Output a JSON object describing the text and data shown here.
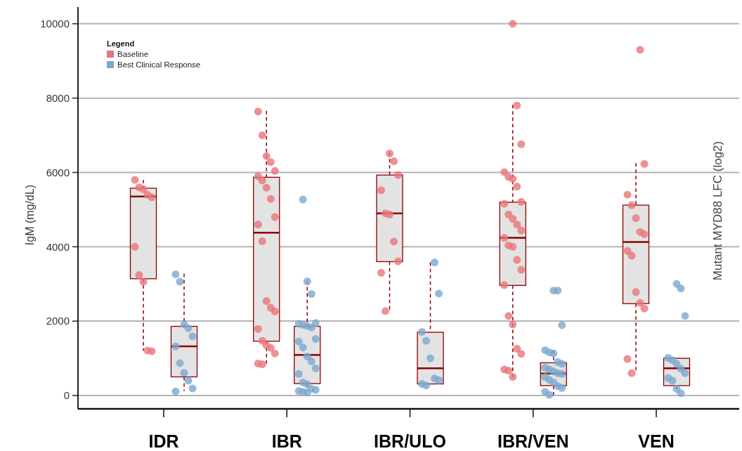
{
  "chart_data": {
    "type": "box",
    "ylabel": "IgM (mg/dL)",
    "y2label": "Mutant MYD88 LFC (log2)",
    "legend_title": "Legend",
    "legend": "top left",
    "grid": "y",
    "ylim": [
      -360,
      10450
    ],
    "yticks": [
      0,
      2000,
      4000,
      6000,
      8000,
      10000
    ],
    "categories": [
      "IDR",
      "IBR",
      "IBR/ULO",
      "IBR/VEN",
      "VEN"
    ],
    "series": [
      {
        "type": "box",
        "color": "#8b0000",
        "boxes": [
          {
            "low": 1200,
            "q1": 3140,
            "median": 5350,
            "q3": 5576,
            "high": 5800
          },
          {
            "low": 860,
            "q1": 1460,
            "median": 4380,
            "q3": 5870,
            "high": 7660
          },
          {
            "low": 2280,
            "q1": 3600,
            "median": 4900,
            "q3": 5930,
            "high": 6540
          },
          {
            "low": 500,
            "q1": 2960,
            "median": 4240,
            "q3": 5200,
            "high": 7820
          },
          {
            "low": 600,
            "q1": 2470,
            "median": 4130,
            "q3": 5120,
            "high": 6250
          }
        ]
      },
      {
        "type": "box",
        "color": "#8b0000",
        "boxes": [
          {
            "low": 120,
            "q1": 500,
            "median": 1320,
            "q3": 1860,
            "high": 3280
          },
          {
            "low": 120,
            "q1": 320,
            "median": 1090,
            "q3": 1860,
            "high": 3090
          },
          {
            "low": 310,
            "q1": 310,
            "median": 730,
            "q3": 1700,
            "high": 3580
          },
          {
            "low": 10,
            "q1": 265,
            "median": 590,
            "q3": 880,
            "high": 1220
          },
          {
            "low": 75,
            "q1": 265,
            "median": 730,
            "q3": 1000,
            "high": 1010
          }
        ]
      },
      {
        "type": "scatter",
        "name": "Baseline",
        "color": "#ea7479",
        "x": [
          "IDR",
          "IDR",
          "IDR",
          "IDR",
          "IDR",
          "IDR",
          "IDR",
          "IDR",
          "IDR",
          "IDR",
          "IBR",
          "IBR",
          "IBR",
          "IBR",
          "IBR",
          "IBR",
          "IBR",
          "IBR",
          "IBR",
          "IBR",
          "IBR",
          "IBR",
          "IBR",
          "IBR",
          "IBR",
          "IBR",
          "IBR",
          "IBR",
          "IBR",
          "IBR",
          "IBR",
          "IBR",
          "IBR/ULO",
          "IBR/ULO",
          "IBR/ULO",
          "IBR/ULO",
          "IBR/ULO",
          "IBR/ULO",
          "IBR/ULO",
          "IBR/ULO",
          "IBR/ULO",
          "IBR/ULO",
          "IBR/VEN",
          "IBR/VEN",
          "IBR/VEN",
          "IBR/VEN",
          "IBR/VEN",
          "IBR/VEN",
          "IBR/VEN",
          "IBR/VEN",
          "IBR/VEN",
          "IBR/VEN",
          "IBR/VEN",
          "IBR/VEN",
          "IBR/VEN",
          "IBR/VEN",
          "IBR/VEN",
          "IBR/VEN",
          "IBR/VEN",
          "IBR/VEN",
          "IBR/VEN",
          "IBR/VEN",
          "IBR/VEN",
          "IBR/VEN",
          "IBR/VEN",
          "IBR/VEN",
          "IBR/VEN",
          "IBR/VEN",
          "VEN",
          "VEN",
          "VEN",
          "VEN",
          "VEN",
          "VEN",
          "VEN",
          "VEN",
          "VEN",
          "VEN",
          "VEN",
          "VEN",
          "VEN",
          "VEN"
        ],
        "values": [
          5800,
          5600,
          5550,
          5400,
          5330,
          4000,
          3240,
          3060,
          1210,
          1190,
          7640,
          7000,
          6440,
          6280,
          6040,
          5900,
          5780,
          5590,
          5290,
          4800,
          4600,
          4150,
          2540,
          2360,
          2260,
          1790,
          1470,
          1350,
          1280,
          1130,
          860,
          840,
          6510,
          6300,
          5930,
          5520,
          4900,
          4870,
          4140,
          3610,
          3300,
          2270,
          10000,
          7800,
          6760,
          6010,
          5880,
          5830,
          5620,
          5210,
          5160,
          4870,
          4750,
          4600,
          4440,
          4240,
          4040,
          4000,
          3650,
          3380,
          2970,
          2140,
          1910,
          1260,
          1120,
          700,
          670,
          500,
          9300,
          6230,
          5400,
          5120,
          4770,
          4400,
          4340,
          3890,
          3760,
          2780,
          2490,
          2340,
          980,
          600
        ]
      },
      {
        "type": "scatter",
        "name": "Best Clinical Response",
        "color": "#7ba7cf",
        "x": [
          "IDR",
          "IDR",
          "IDR",
          "IDR",
          "IDR",
          "IDR",
          "IDR",
          "IDR",
          "IDR",
          "IDR",
          "IDR",
          "IBR",
          "IBR",
          "IBR",
          "IBR",
          "IBR",
          "IBR",
          "IBR",
          "IBR",
          "IBR",
          "IBR",
          "IBR",
          "IBR",
          "IBR",
          "IBR",
          "IBR",
          "IBR",
          "IBR",
          "IBR",
          "IBR",
          "IBR",
          "IBR",
          "IBR",
          "IBR/ULO",
          "IBR/ULO",
          "IBR/ULO",
          "IBR/ULO",
          "IBR/ULO",
          "IBR/ULO",
          "IBR/ULO",
          "IBR/ULO",
          "IBR/ULO",
          "IBR/VEN",
          "IBR/VEN",
          "IBR/VEN",
          "IBR/VEN",
          "IBR/VEN",
          "IBR/VEN",
          "IBR/VEN",
          "IBR/VEN",
          "IBR/VEN",
          "IBR/VEN",
          "IBR/VEN",
          "IBR/VEN",
          "IBR/VEN",
          "IBR/VEN",
          "IBR/VEN",
          "IBR/VEN",
          "IBR/VEN",
          "IBR/VEN",
          "IBR/VEN",
          "IBR/VEN",
          "VEN",
          "VEN",
          "VEN",
          "VEN",
          "VEN",
          "VEN",
          "VEN",
          "VEN",
          "VEN",
          "VEN",
          "VEN",
          "VEN"
        ],
        "values": [
          3260,
          3060,
          1910,
          1810,
          1590,
          1320,
          870,
          610,
          400,
          190,
          110,
          5270,
          3070,
          2730,
          1950,
          1930,
          1900,
          1870,
          1830,
          1520,
          1450,
          1290,
          1050,
          920,
          730,
          580,
          350,
          300,
          180,
          150,
          120,
          100,
          80,
          3580,
          2740,
          1710,
          1470,
          1000,
          460,
          410,
          310,
          270,
          2820,
          2820,
          1890,
          1220,
          1160,
          1130,
          900,
          850,
          750,
          700,
          650,
          600,
          580,
          500,
          420,
          350,
          250,
          200,
          100,
          20,
          3000,
          2880,
          2140,
          1010,
          950,
          850,
          720,
          600,
          470,
          400,
          180,
          60
        ]
      }
    ]
  }
}
